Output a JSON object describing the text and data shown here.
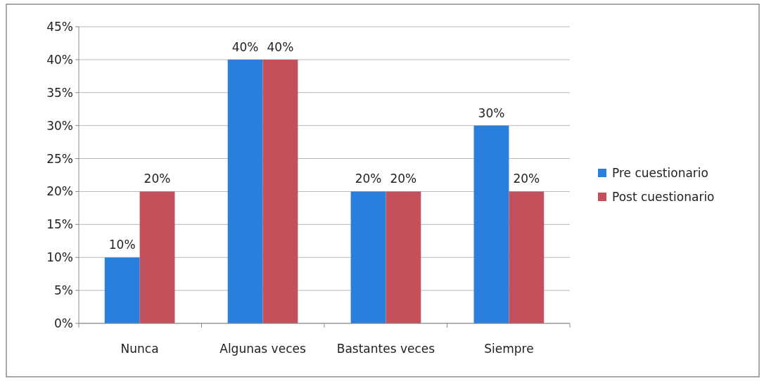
{
  "chart_data": {
    "type": "bar",
    "categories": [
      "Nunca",
      "Algunas veces",
      "Bastantes veces",
      "Siempre"
    ],
    "series": [
      {
        "name": "Pre cuestionario",
        "color": "#2b7fdc",
        "values": [
          10,
          40,
          20,
          30
        ],
        "value_labels": [
          "10%",
          "40%",
          "20%",
          "30%"
        ]
      },
      {
        "name": "Post cuestionario",
        "color": "#c4505c",
        "values": [
          20,
          40,
          20,
          20
        ],
        "value_labels": [
          "20%",
          "40%",
          "20%",
          "20%"
        ]
      }
    ],
    "ylim": [
      0,
      45
    ],
    "yticks": [
      {
        "value": 0,
        "label": "0%"
      },
      {
        "value": 5,
        "label": "5%"
      },
      {
        "value": 10,
        "label": "10%"
      },
      {
        "value": 15,
        "label": "15%"
      },
      {
        "value": 20,
        "label": "20%"
      },
      {
        "value": 25,
        "label": "25%"
      },
      {
        "value": 30,
        "label": "30%"
      },
      {
        "value": 35,
        "label": "35%"
      },
      {
        "value": 40,
        "label": "40%"
      },
      {
        "value": 45,
        "label": "45%"
      }
    ],
    "grid": "y",
    "legend": "right"
  }
}
